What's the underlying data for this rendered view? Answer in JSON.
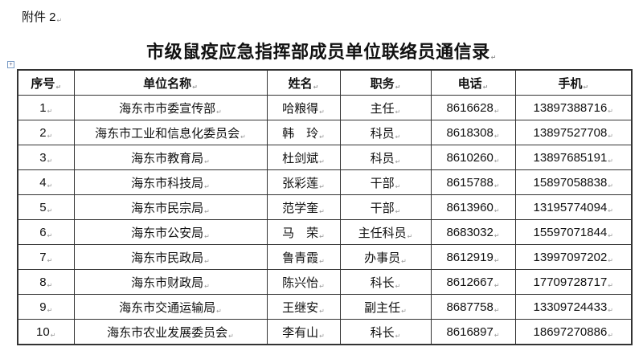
{
  "attachment_label": "附件 2",
  "title": "市级鼠疫应急指挥部成员单位联络员通信录",
  "table": {
    "headers": [
      "序号",
      "单位名称",
      "姓名",
      "职务",
      "电话",
      "手机"
    ],
    "rows": [
      [
        "1",
        "海东市市委宣传部",
        "哈粮得",
        "主任",
        "8616628",
        "13897388716"
      ],
      [
        "2",
        "海东市工业和信息化委员会",
        "韩　玲",
        "科员",
        "8618308",
        "13897527708"
      ],
      [
        "3",
        "海东市教育局",
        "杜剑斌",
        "科员",
        "8610260",
        "13897685191"
      ],
      [
        "4",
        "海东市科技局",
        "张彩莲",
        "干部",
        "8615788",
        "15897058838"
      ],
      [
        "5",
        "海东市民宗局",
        "范学奎",
        "干部",
        "8613960",
        "13195774094"
      ],
      [
        "6",
        "海东市公安局",
        "马　荣",
        "主任科员",
        "8683032",
        "15597071844"
      ],
      [
        "7",
        "海东市民政局",
        "鲁青霞",
        "办事员",
        "8612919",
        "13997097202"
      ],
      [
        "8",
        "海东市财政局",
        "陈兴怡",
        "科长",
        "8612667",
        "17709728717"
      ],
      [
        "9",
        "海东市交通运输局",
        "王继安",
        "副主任",
        "8687758",
        "13309724433"
      ],
      [
        "10",
        "海东市农业发展委员会",
        "李有山",
        "科长",
        "8616897",
        "18697270886"
      ]
    ]
  }
}
